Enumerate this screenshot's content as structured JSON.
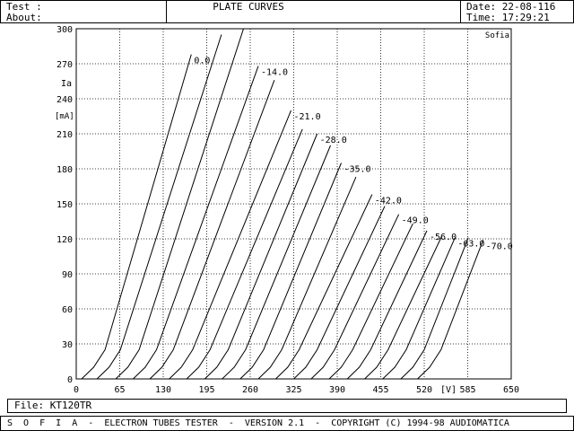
{
  "header": {
    "test_label": "Test :",
    "about_label": "About:",
    "title": "PLATE CURVES",
    "date": "Date: 22-08-116",
    "time": "Time: 17:29:21"
  },
  "footer": {
    "file": "File: KT120TR",
    "banner": "S  O  F  I  A  -  ELECTRON TUBES TESTER  -  VERSION 2.1  -  COPYRIGHT (C) 1994-98 AUDIOMATICA"
  },
  "chart_data": {
    "type": "line",
    "title": "PLATE CURVES",
    "corner_label": "Sofia",
    "xlabel": "[V]",
    "ylabel_top": "Ia",
    "ylabel_unit": "[mA]",
    "xlim": [
      0,
      650
    ],
    "ylim": [
      0,
      300
    ],
    "x_ticks": [
      "0",
      "65",
      "130",
      "195",
      "260",
      "325",
      "390",
      "455",
      "520",
      "585",
      "650"
    ],
    "y_ticks": [
      "0",
      "30",
      "60",
      "90",
      "120",
      "150",
      "180",
      "210",
      "240",
      "270",
      "300"
    ],
    "grid": true,
    "curve_shape": {
      "kink_x_offset": 35,
      "kink_y": 25,
      "step_x_offset": 18,
      "step_y": 10
    },
    "curves": [
      {
        "label": "0.0",
        "x0": 8,
        "x1": 172,
        "y1": 278
      },
      {
        "x0": 31,
        "x1": 217,
        "y1": 295
      },
      {
        "x0": 59,
        "x1": 250,
        "y1": 300
      },
      {
        "label": "-14.0",
        "x0": 85,
        "x1": 272,
        "y1": 268
      },
      {
        "x0": 110,
        "x1": 296,
        "y1": 256
      },
      {
        "label": "-21.0",
        "x0": 139,
        "x1": 321,
        "y1": 230
      },
      {
        "x0": 165,
        "x1": 338,
        "y1": 214
      },
      {
        "label": "-28.0",
        "x0": 192,
        "x1": 360,
        "y1": 210
      },
      {
        "x0": 218,
        "x1": 380,
        "y1": 200
      },
      {
        "label": "-35.0",
        "x0": 245,
        "x1": 396,
        "y1": 185
      },
      {
        "x0": 272,
        "x1": 418,
        "y1": 173
      },
      {
        "label": "-42.0",
        "x0": 298,
        "x1": 442,
        "y1": 158
      },
      {
        "x0": 325,
        "x1": 461,
        "y1": 148
      },
      {
        "label": "-49.0",
        "x0": 351,
        "x1": 482,
        "y1": 141
      },
      {
        "x0": 378,
        "x1": 503,
        "y1": 133
      },
      {
        "label": "-56.0",
        "x0": 405,
        "x1": 524,
        "y1": 127
      },
      {
        "x0": 431,
        "x1": 546,
        "y1": 122
      },
      {
        "label": "-63.0",
        "x0": 458,
        "x1": 566,
        "y1": 121
      },
      {
        "x0": 485,
        "x1": 586,
        "y1": 121
      },
      {
        "label": "-70.0",
        "x0": 510,
        "x1": 608,
        "y1": 119
      }
    ]
  }
}
